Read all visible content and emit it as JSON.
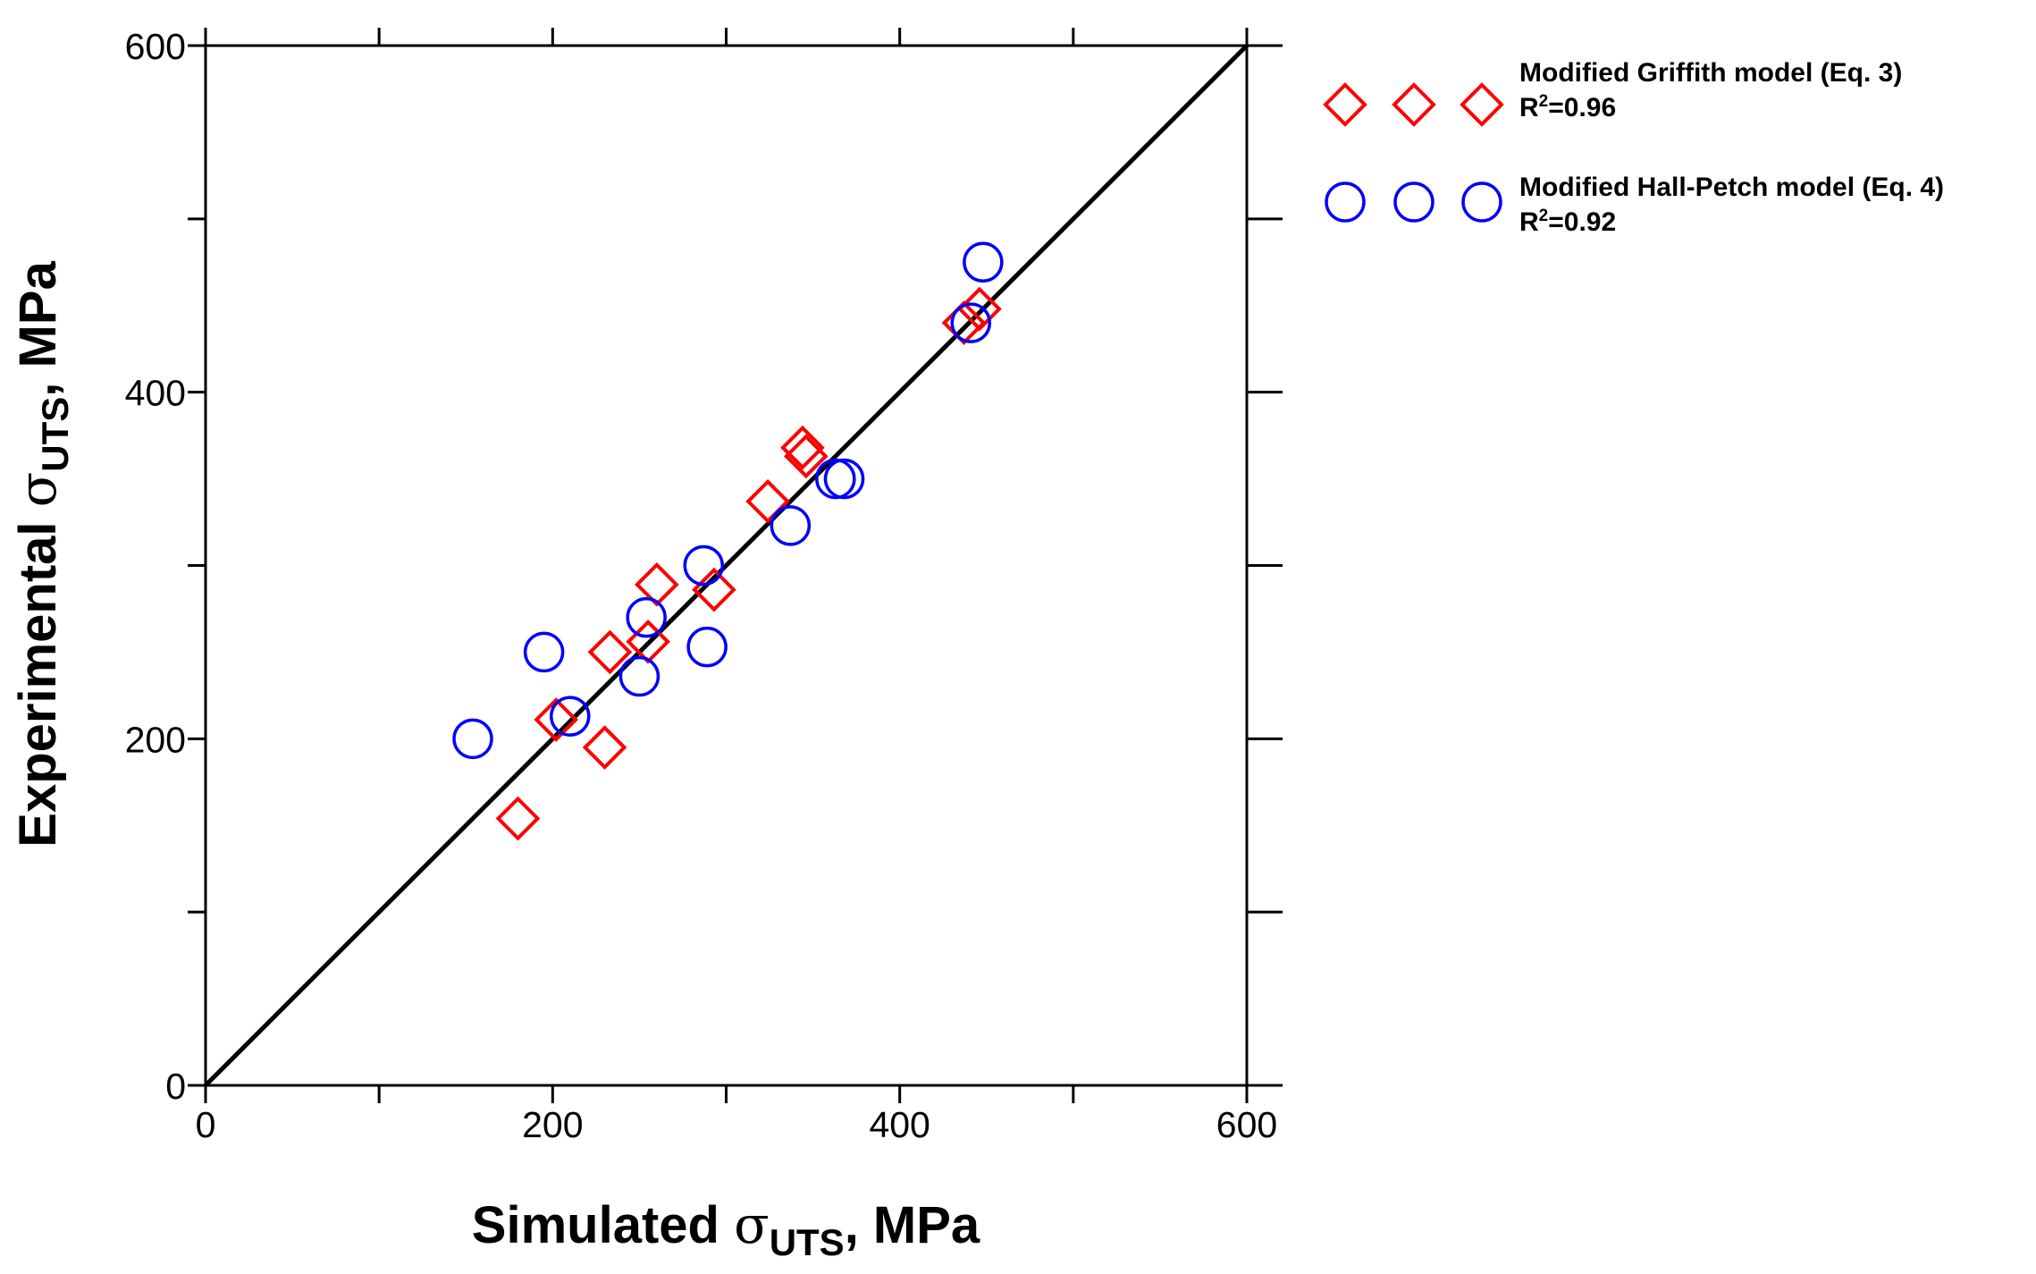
{
  "chart_data": {
    "type": "scatter",
    "xlabel": {
      "prefix": "Simulated ",
      "symbol": "σ",
      "subscript": "UTS",
      "suffix": ", MPa"
    },
    "ylabel": {
      "prefix": "Experimental ",
      "symbol": "σ",
      "subscript": "UTS",
      "suffix": ", MPa"
    },
    "xlim": [
      0,
      600
    ],
    "ylim": [
      0,
      600
    ],
    "x_ticks": [
      0,
      200,
      400,
      600
    ],
    "y_ticks": [
      0,
      200,
      400,
      600
    ],
    "minor_step": 100,
    "reference_line": {
      "from": [
        0,
        0
      ],
      "to": [
        600,
        600
      ],
      "color": "#000000"
    },
    "legend_position": "top-right outside plot",
    "series": [
      {
        "name": "Modified Griffith model (Eq. 3)",
        "r2_base": "R",
        "r2_sup": "2",
        "r2_value": "=0.96",
        "marker": "diamond",
        "color": "#ff0000",
        "points": [
          [
            180,
            154
          ],
          [
            202,
            211
          ],
          [
            230,
            195
          ],
          [
            233,
            250
          ],
          [
            255,
            256
          ],
          [
            260,
            289
          ],
          [
            293,
            286
          ],
          [
            324,
            337
          ],
          [
            344,
            368
          ],
          [
            346,
            363
          ],
          [
            437,
            440
          ],
          [
            446,
            448
          ]
        ]
      },
      {
        "name": "Modified Hall-Petch model (Eq. 4)",
        "r2_base": "R",
        "r2_sup": "2",
        "r2_value": "=0.92",
        "marker": "circle",
        "color": "#0000ff",
        "points": [
          [
            154,
            200
          ],
          [
            195,
            250
          ],
          [
            210,
            213
          ],
          [
            250,
            236
          ],
          [
            254,
            270
          ],
          [
            287,
            300
          ],
          [
            289,
            253
          ],
          [
            337,
            323
          ],
          [
            363,
            350
          ],
          [
            368,
            350
          ],
          [
            441,
            440
          ],
          [
            448,
            475
          ]
        ]
      }
    ]
  }
}
